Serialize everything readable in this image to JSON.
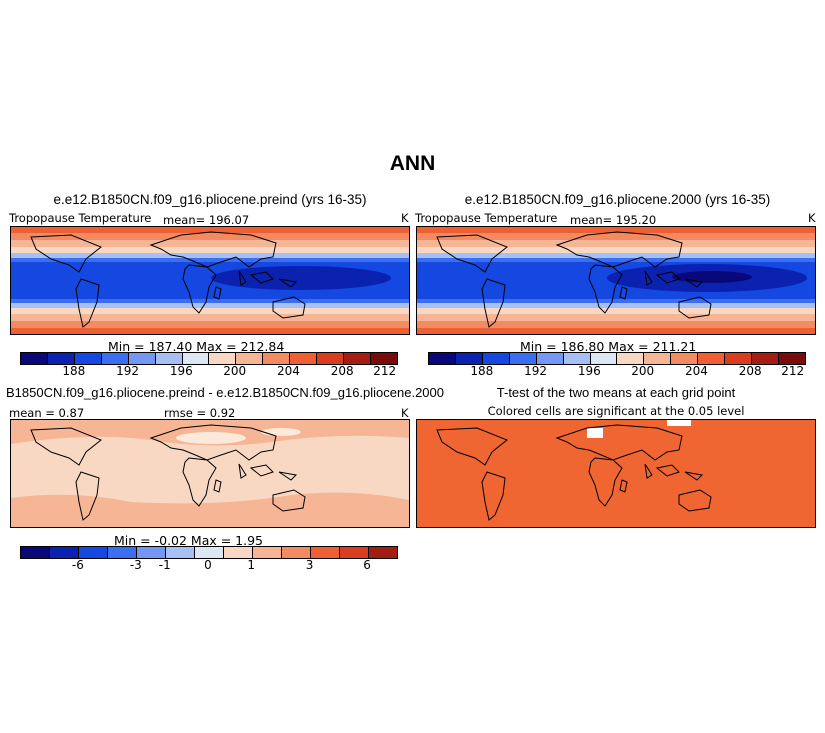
{
  "figure": {
    "title": "ANN"
  },
  "panels": {
    "p1": {
      "title": "e.e12.B1850CN.f09_g16.pliocene.preind (yrs 16-35)",
      "var_label": "Tropopause Temperature",
      "mean_label": "mean=",
      "mean_value": "196.07",
      "units": "K",
      "minmax": "Min = 187.40  Max = 212.84"
    },
    "p2": {
      "title": "e.e12.B1850CN.f09_g16.pliocene.2000 (yrs 16-35)",
      "var_label": "Tropopause Temperature",
      "mean_label": "mean=",
      "mean_value": "195.20",
      "units": "K",
      "minmax": "Min = 186.80  Max = 211.21"
    },
    "p3": {
      "title": "B1850CN.f09_g16.pliocene.preind - e.e12.B1850CN.f09_g16.pliocene.2000",
      "mean_text": "mean =   0.87",
      "rmse_text": "rmse =   0.92",
      "units": "K",
      "minmax": "Min =  -0.02  Max =   1.95"
    },
    "p4": {
      "title": "T-test of the two means at each grid point",
      "subtitle": "Colored cells are significant at the 0.05 level"
    }
  },
  "colors": {
    "abs_scale": [
      "#08087a",
      "#0b22b0",
      "#1448e0",
      "#3b6ef0",
      "#7397f2",
      "#a6bff4",
      "#dce7f6",
      "#f8d8c3",
      "#f6b595",
      "#f28b62",
      "#ee5f34",
      "#d93d1f",
      "#a51d12",
      "#7a0b0b"
    ],
    "diff_scale": [
      "#08087a",
      "#0b22b0",
      "#1448e0",
      "#3b6ef0",
      "#7397f2",
      "#a6bff4",
      "#dce7f6",
      "#f8d8c3",
      "#f6b595",
      "#f28b62",
      "#ee5f34",
      "#d93d1f",
      "#a51d12"
    ],
    "ttest_fill": "#ef6633"
  },
  "chart_data": [
    {
      "type": "heatmap",
      "title": "e.e12.B1850CN.f09_g16.pliocene.preind (yrs 16-35)",
      "variable": "Tropopause Temperature",
      "units": "K",
      "mean": 196.07,
      "min": 187.4,
      "max": 212.84,
      "colorbar_levels": [
        186,
        188,
        190,
        192,
        194,
        196,
        198,
        200,
        202,
        204,
        206,
        208,
        210,
        212
      ],
      "colorbar_tick_labels": [
        "188",
        "192",
        "196",
        "200",
        "204",
        "208",
        "212"
      ]
    },
    {
      "type": "heatmap",
      "title": "e.e12.B1850CN.f09_g16.pliocene.2000 (yrs 16-35)",
      "variable": "Tropopause Temperature",
      "units": "K",
      "mean": 195.2,
      "min": 186.8,
      "max": 211.21,
      "colorbar_levels": [
        186,
        188,
        190,
        192,
        194,
        196,
        198,
        200,
        202,
        204,
        206,
        208,
        210,
        212
      ],
      "colorbar_tick_labels": [
        "188",
        "192",
        "196",
        "200",
        "204",
        "208",
        "212"
      ]
    },
    {
      "type": "heatmap",
      "title": "B1850CN.f09_g16.pliocene.preind - e.e12.B1850CN.f09_g16.pliocene.2000",
      "units": "K",
      "mean": 0.87,
      "rmse": 0.92,
      "min": -0.02,
      "max": 1.95,
      "colorbar_tick_labels": [
        "-6",
        "-3",
        "-1",
        "0",
        "1",
        "3",
        "6"
      ]
    },
    {
      "type": "heatmap",
      "title": "T-test of the two means at each grid point",
      "subtitle": "Colored cells are significant at the 0.05 level",
      "significance_level": 0.05
    }
  ]
}
